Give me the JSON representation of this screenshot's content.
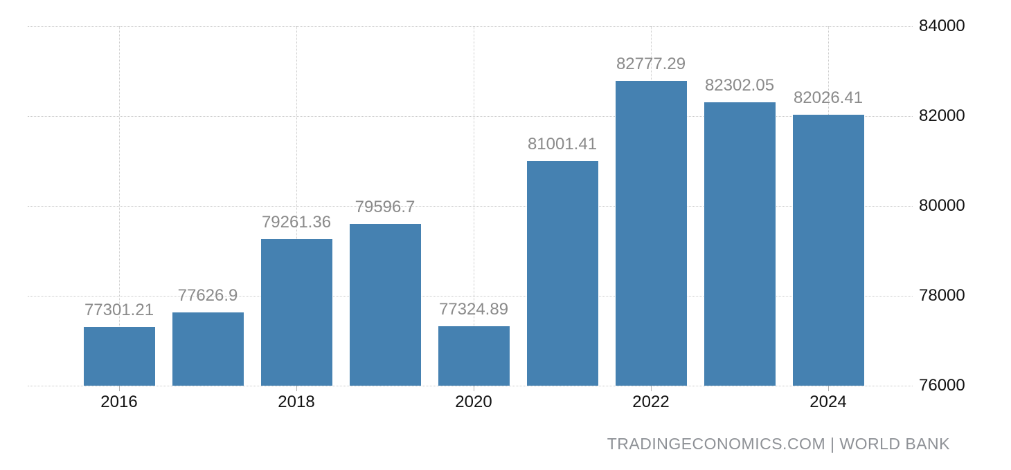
{
  "chart_data": {
    "type": "bar",
    "categories": [
      "2016",
      "2017",
      "2018",
      "2019",
      "2020",
      "2021",
      "2022",
      "2023",
      "2024"
    ],
    "values": [
      77301.21,
      77626.9,
      79261.36,
      79596.7,
      77324.89,
      81001.41,
      82777.29,
      82302.05,
      82026.41
    ],
    "value_labels": [
      "77301.21",
      "77626.9",
      "79261.36",
      "79596.7",
      "77324.89",
      "81001.41",
      "82777.29",
      "82302.05",
      "82026.41"
    ],
    "x_tick_labels": [
      "2016",
      "2018",
      "2020",
      "2022",
      "2024"
    ],
    "x_tick_indices": [
      0,
      2,
      4,
      6,
      8
    ],
    "y_ticks": [
      76000,
      78000,
      80000,
      82000,
      84000
    ],
    "y_tick_labels": [
      "76000",
      "78000",
      "80000",
      "82000",
      "84000"
    ],
    "ylim": [
      76000,
      84000
    ],
    "title": "",
    "xlabel": "",
    "ylabel": "",
    "legend": "none",
    "grid": "dotted",
    "y_axis_side": "right",
    "bar_color": "#4581B1",
    "value_label_color": "#8A8A8A",
    "axis_label_color": "#111111",
    "gridline_color": "#C9C9C9"
  },
  "footer": {
    "attribution": "TRADINGECONOMICS.COM | WORLD BANK"
  }
}
